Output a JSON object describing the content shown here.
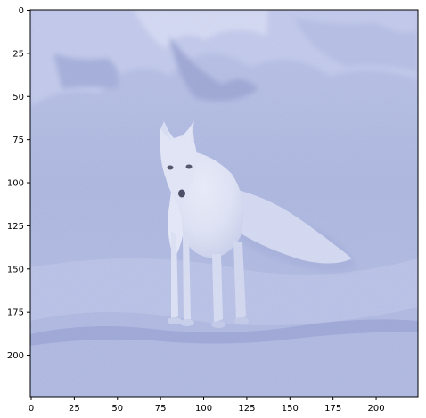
{
  "figure": {
    "image": {
      "subject": "arctic-fox",
      "colors": {
        "sky": "#a9b6d8",
        "mountain_shadow": "#8f9ac9",
        "snow_light": "#c9d0ee",
        "snow_mid": "#b3bce0",
        "fox_body": "#eef0f8",
        "fox_shadow": "#cfd5ea",
        "fox_shadow_on_snow": "#9ea9d4",
        "accent_blue": "#5f6fb3"
      }
    },
    "axes": {
      "frame_color": "#000000",
      "x_ticks": [
        "0",
        "25",
        "50",
        "75",
        "100",
        "125",
        "150",
        "175",
        "200"
      ],
      "y_ticks": [
        "0",
        "25",
        "50",
        "75",
        "100",
        "125",
        "150",
        "175",
        "200"
      ],
      "x_range": [
        0,
        224
      ],
      "y_range": [
        0,
        224
      ],
      "y_inverted": true
    }
  }
}
